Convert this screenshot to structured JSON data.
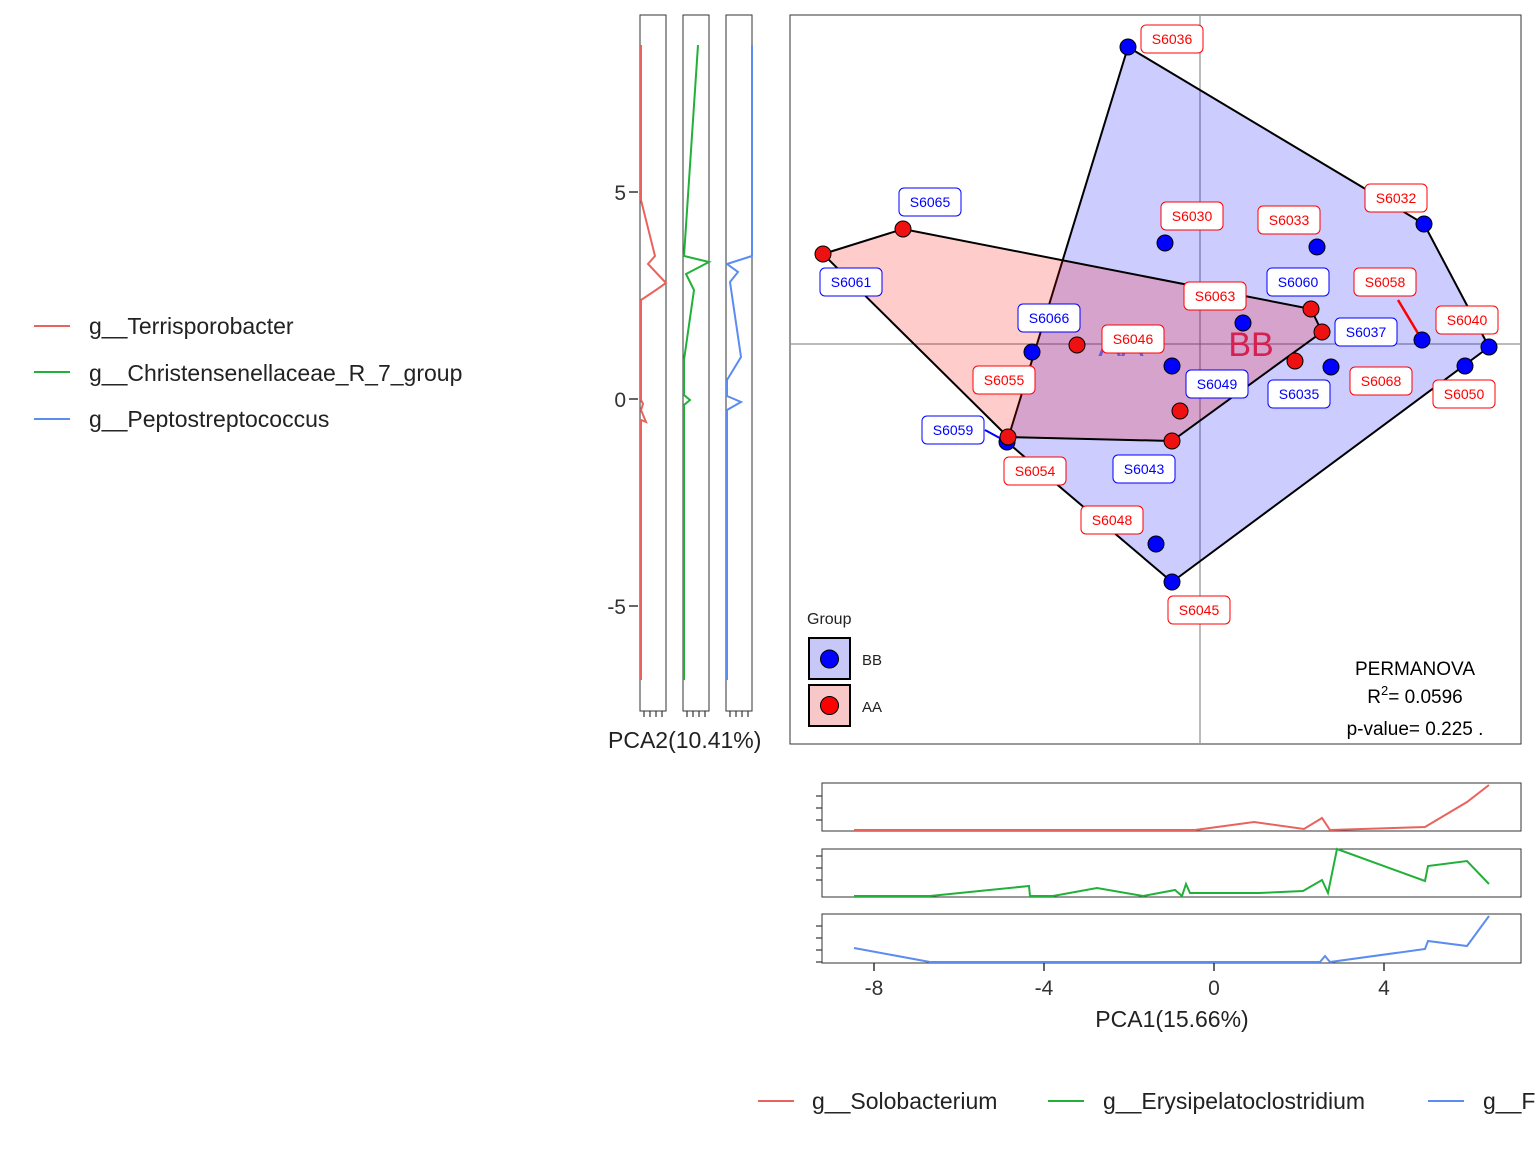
{
  "chart_data": {
    "type": "scatter",
    "xlabel": "PCA1(15.66%)",
    "ylabel": "PCA2(10.41%)",
    "xlim": [
      -9.2,
      7.9
    ],
    "ylim": [
      -8.4,
      9.3
    ],
    "xticks": [
      -8,
      -4,
      0,
      4
    ],
    "yticks": [
      -5,
      0,
      5
    ],
    "xtick_labels": [
      "-8",
      "-4",
      "0",
      "4"
    ],
    "ytick_labels": [
      "-5",
      "0",
      "5"
    ],
    "legend_title": "Group",
    "legend_position": "bottom-left",
    "series": [
      {
        "name": "BB",
        "color": "#0000ff",
        "fill": "#c8c8f8",
        "centroid_label": "BB",
        "centroid": [
          0.9,
          1.3
        ],
        "points": [
          {
            "label": "S6036",
            "x": -2.0,
            "y": 8.5
          },
          {
            "label": "S6032",
            "x": 5.2,
            "y": 4.2
          },
          {
            "label": "S6040",
            "x": 6.5,
            "y": 1.3
          },
          {
            "label": "S6050",
            "x": 6.0,
            "y": 0.8
          },
          {
            "label": "S6058",
            "x": 5.0,
            "y": 1.4
          },
          {
            "label": "S6037",
            "x": 2.9,
            "y": 1.7
          },
          {
            "label": "S6035",
            "x": 2.9,
            "y": 0.8
          },
          {
            "label": "S6060",
            "x": 2.6,
            "y": 2.2
          },
          {
            "label": "S6033",
            "x": 2.8,
            "y": 3.7
          },
          {
            "label": "S6030",
            "x": -1.0,
            "y": 3.8
          },
          {
            "label": "S6063",
            "x": 1.0,
            "y": 1.85
          },
          {
            "label": "S6049",
            "x": -0.8,
            "y": 0.8
          },
          {
            "label": "S6066",
            "x": -4.0,
            "y": 1.1
          },
          {
            "label": "S6059",
            "x": -4.7,
            "y": -1.1
          },
          {
            "label": "S6043",
            "x": -0.8,
            "y": -1.0
          },
          {
            "label": "S6048",
            "x": -1.3,
            "y": -3.5
          },
          {
            "label": "S6045",
            "x": -0.8,
            "y": -4.5
          }
        ],
        "hull": [
          "S6036",
          "S6032",
          "S6040",
          "S6045",
          "S6059",
          "S6036"
        ]
      },
      {
        "name": "AA",
        "color": "#ff0000",
        "fill": "#f8c8c8",
        "centroid_label": "AA",
        "centroid": [
          -1.9,
          1.3
        ],
        "points": [
          {
            "label": "S6061",
            "x": -9.1,
            "y": 3.5
          },
          {
            "label": "S6065",
            "x": -7.1,
            "y": 4.1
          },
          {
            "label": "S6046",
            "x": -3.0,
            "y": 1.3
          },
          {
            "label": "S6055",
            "x": -4.7,
            "y": -0.9
          },
          {
            "label": "S6054",
            "x": -4.7,
            "y": -0.9
          },
          {
            "label": "S6058",
            "x": 5.0,
            "y": 1.4
          },
          {
            "label": "S6068",
            "x": 2.8,
            "y": 1.6
          },
          {
            "label": "S6063",
            "x": 2.7,
            "y": 2.1
          },
          {
            "label": "S6049",
            "x": -0.8,
            "y": -0.3
          },
          {
            "label": "S6043",
            "x": -0.8,
            "y": -1.0
          },
          {
            "label": "S6048",
            "x": 2.1,
            "y": 0.9
          }
        ],
        "hull": [
          "S6061",
          "S6065",
          "S6063",
          "S6068",
          "S6043",
          "S6054",
          "S6061"
        ]
      }
    ],
    "stats": {
      "title": "PERMANOVA",
      "r2_label": "R",
      "r2_sup": "2",
      "r2_value": "= 0.0596",
      "pvalue": "p-value= 0.225 ."
    },
    "left_legend": [
      {
        "name": "g__Terrisporobacter",
        "color": "#e8635e"
      },
      {
        "name": "g__Christensenellaceae_R_7_group",
        "color": "#21b139"
      },
      {
        "name": "g__Peptostreptococcus",
        "color": "#5b8cf0"
      }
    ],
    "bottom_legend": [
      {
        "name": "g__Solobacterium",
        "color": "#e8635e"
      },
      {
        "name": "g__Erysipelatoclostridium",
        "color": "#21b139"
      },
      {
        "name": "g__F",
        "color": "#5b8cf0"
      }
    ]
  }
}
